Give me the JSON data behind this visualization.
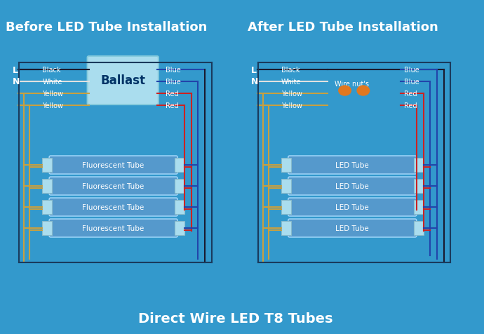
{
  "bg_color": "#3399cc",
  "title_before": "Before LED Tube Installation",
  "title_after": "After LED Tube Installation",
  "subtitle": "Direct Wire LED T8 Tubes",
  "title_color": "white",
  "title_fontsize": 13,
  "subtitle_fontsize": 14,
  "wire_colors": {
    "black": "#1a1a2e",
    "white": "#e0e0e0",
    "yellow": "#c8a040",
    "blue": "#2244aa",
    "red": "#cc2222"
  },
  "tube_fill": "#5599cc",
  "tube_edge": "#aaddff",
  "ballast_fill": "#aaddee",
  "ballast_edge": "#88ccdd",
  "wire_nut_color": "#e07820"
}
